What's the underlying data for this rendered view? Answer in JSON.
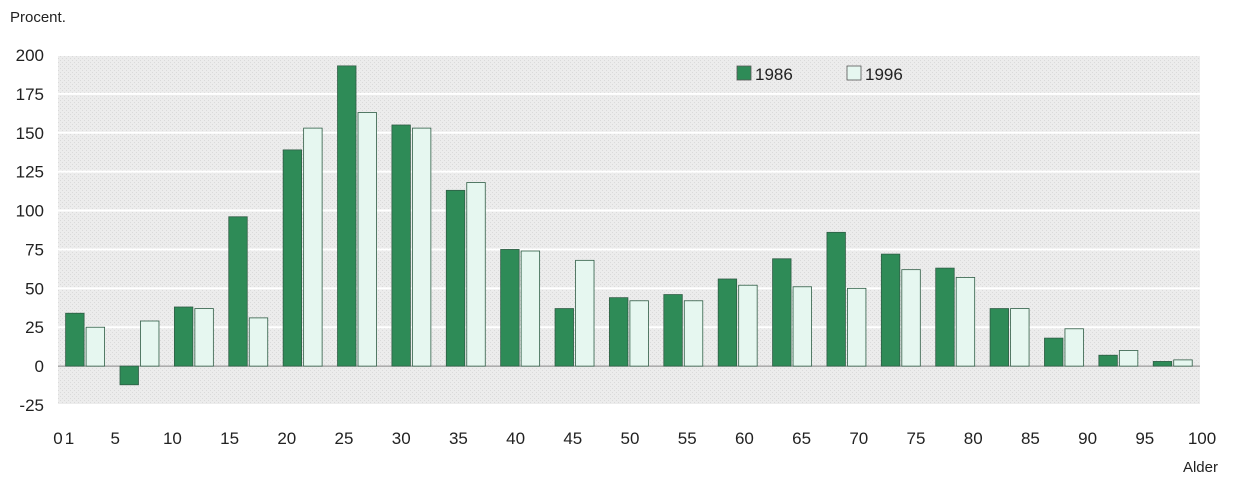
{
  "chart_data": {
    "type": "bar",
    "ylabel": "Procent.",
    "xlabel": "Alder",
    "ylim": [
      -25,
      200
    ],
    "xlim": [
      0,
      100
    ],
    "y_ticks": [
      "-25",
      "0",
      "25",
      "50",
      "75",
      "100",
      "125",
      "150",
      "175",
      "200"
    ],
    "x_ticks": [
      "0",
      "1",
      "5",
      "10",
      "15",
      "20",
      "25",
      "30",
      "35",
      "40",
      "45",
      "50",
      "55",
      "60",
      "65",
      "70",
      "75",
      "80",
      "85",
      "90",
      "95",
      "100"
    ],
    "grid": true,
    "legend_position": "top-right",
    "categories": [
      "0",
      "1-4",
      "5-9",
      "10-14",
      "15-19",
      "20-24",
      "25-29",
      "30-34",
      "35-39",
      "40-44",
      "45-49",
      "50-54",
      "55-59",
      "60-64",
      "65-69",
      "70-74",
      "75-79",
      "80-84",
      "85-89",
      "90-94",
      "95-99"
    ],
    "series": [
      {
        "name": "1986",
        "color": "#2e8b57",
        "values": [
          34,
          -12,
          38,
          96,
          139,
          193,
          155,
          113,
          75,
          37,
          44,
          46,
          56,
          69,
          86,
          72,
          63,
          37,
          18,
          7,
          3
        ]
      },
      {
        "name": "1996",
        "color": "#e6f7f0",
        "values": [
          25,
          29,
          37,
          31,
          153,
          163,
          153,
          118,
          74,
          68,
          42,
          42,
          52,
          51,
          50,
          62,
          57,
          37,
          24,
          10,
          4
        ]
      }
    ]
  }
}
